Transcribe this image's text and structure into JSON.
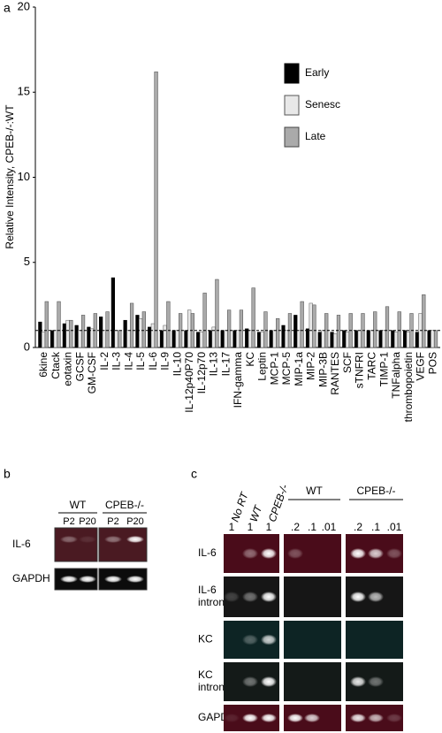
{
  "chart_data": {
    "type": "bar",
    "panel_label": "a",
    "y_label": "Relative Intensity, CPEB-/-:WT",
    "categories": [
      "6kine",
      "Ctack",
      "eotaxin",
      "GCSF",
      "GM-CSF",
      "IL-2",
      "IL-3",
      "IL-4",
      "IL-5",
      "IL-6",
      "IL-9",
      "IL-10",
      "IL-12p40P70",
      "IL-12p70",
      "IL-13",
      "IL-17",
      "IFN-gamma",
      "KC",
      "Leptin",
      "MCP-1",
      "MCP-5",
      "MIP-1a",
      "MIP-2",
      "MIP-3B",
      "RANTES",
      "SCF",
      "sTNFRI",
      "TARC",
      "TIMP-1",
      "TNFalpha",
      "thrombopoietin",
      "VEGF",
      "POS"
    ],
    "series": [
      {
        "name": "Early",
        "color": "#000000",
        "values": [
          1.5,
          1.0,
          1.4,
          1.3,
          1.2,
          1.8,
          4.1,
          1.6,
          1.9,
          1.2,
          1.0,
          1.0,
          1.0,
          0.9,
          1.0,
          1.0,
          1.0,
          1.1,
          0.9,
          1.0,
          1.3,
          1.9,
          1.1,
          0.9,
          0.9,
          1.0,
          1.0,
          1.0,
          1.0,
          1.0,
          1.0,
          0.9,
          1.0
        ]
      },
      {
        "name": "Senesc",
        "color": "#e8e8e8",
        "values": [
          0.9,
          1.0,
          1.6,
          1.0,
          1.1,
          1.0,
          1.0,
          1.0,
          1.7,
          1.4,
          1.3,
          1.0,
          2.2,
          0.9,
          1.2,
          1.0,
          1.0,
          1.0,
          0.9,
          1.0,
          1.0,
          1.0,
          2.6,
          1.0,
          0.8,
          0.9,
          1.0,
          1.0,
          1.0,
          0.9,
          0.9,
          2.0,
          1.0
        ]
      },
      {
        "name": "Late",
        "color": "#aaaaaa",
        "values": [
          2.7,
          2.7,
          1.6,
          1.9,
          2.0,
          2.1,
          1.0,
          2.6,
          2.1,
          16.2,
          2.7,
          2.0,
          2.0,
          3.2,
          4.0,
          2.2,
          2.2,
          3.5,
          2.1,
          1.7,
          2.0,
          2.7,
          2.5,
          2.0,
          1.9,
          2.0,
          2.0,
          2.1,
          2.4,
          2.1,
          2.0,
          3.1,
          1.0
        ]
      }
    ],
    "reference_line": 1,
    "ylim": [
      0,
      20
    ],
    "yticks": [
      0,
      5,
      10,
      15,
      20
    ]
  },
  "panel_b": {
    "label": "b",
    "groups": [
      {
        "name": "WT"
      },
      {
        "name": "CPEB-/-"
      }
    ],
    "lanes": [
      "P2",
      "P20",
      "P2",
      "P20"
    ],
    "rows": [
      "IL-6",
      "GAPDH"
    ]
  },
  "panel_c": {
    "label": "c",
    "lane_headers": [
      "No RT",
      "WT",
      "CPEB-/-"
    ],
    "lane_numbers": [
      "1",
      "1",
      "1",
      ".2",
      ".1",
      ".01",
      ".2",
      ".1",
      ".01"
    ],
    "groups": [
      {
        "name": "WT"
      },
      {
        "name": "CPEB-/-"
      }
    ],
    "rows": [
      {
        "lines": [
          "IL-6"
        ]
      },
      {
        "lines": [
          "IL-6",
          "intron"
        ]
      },
      {
        "lines": [
          "KC"
        ]
      },
      {
        "lines": [
          "KC",
          "intron"
        ]
      },
      {
        "lines": [
          "GAPDH"
        ]
      }
    ]
  }
}
